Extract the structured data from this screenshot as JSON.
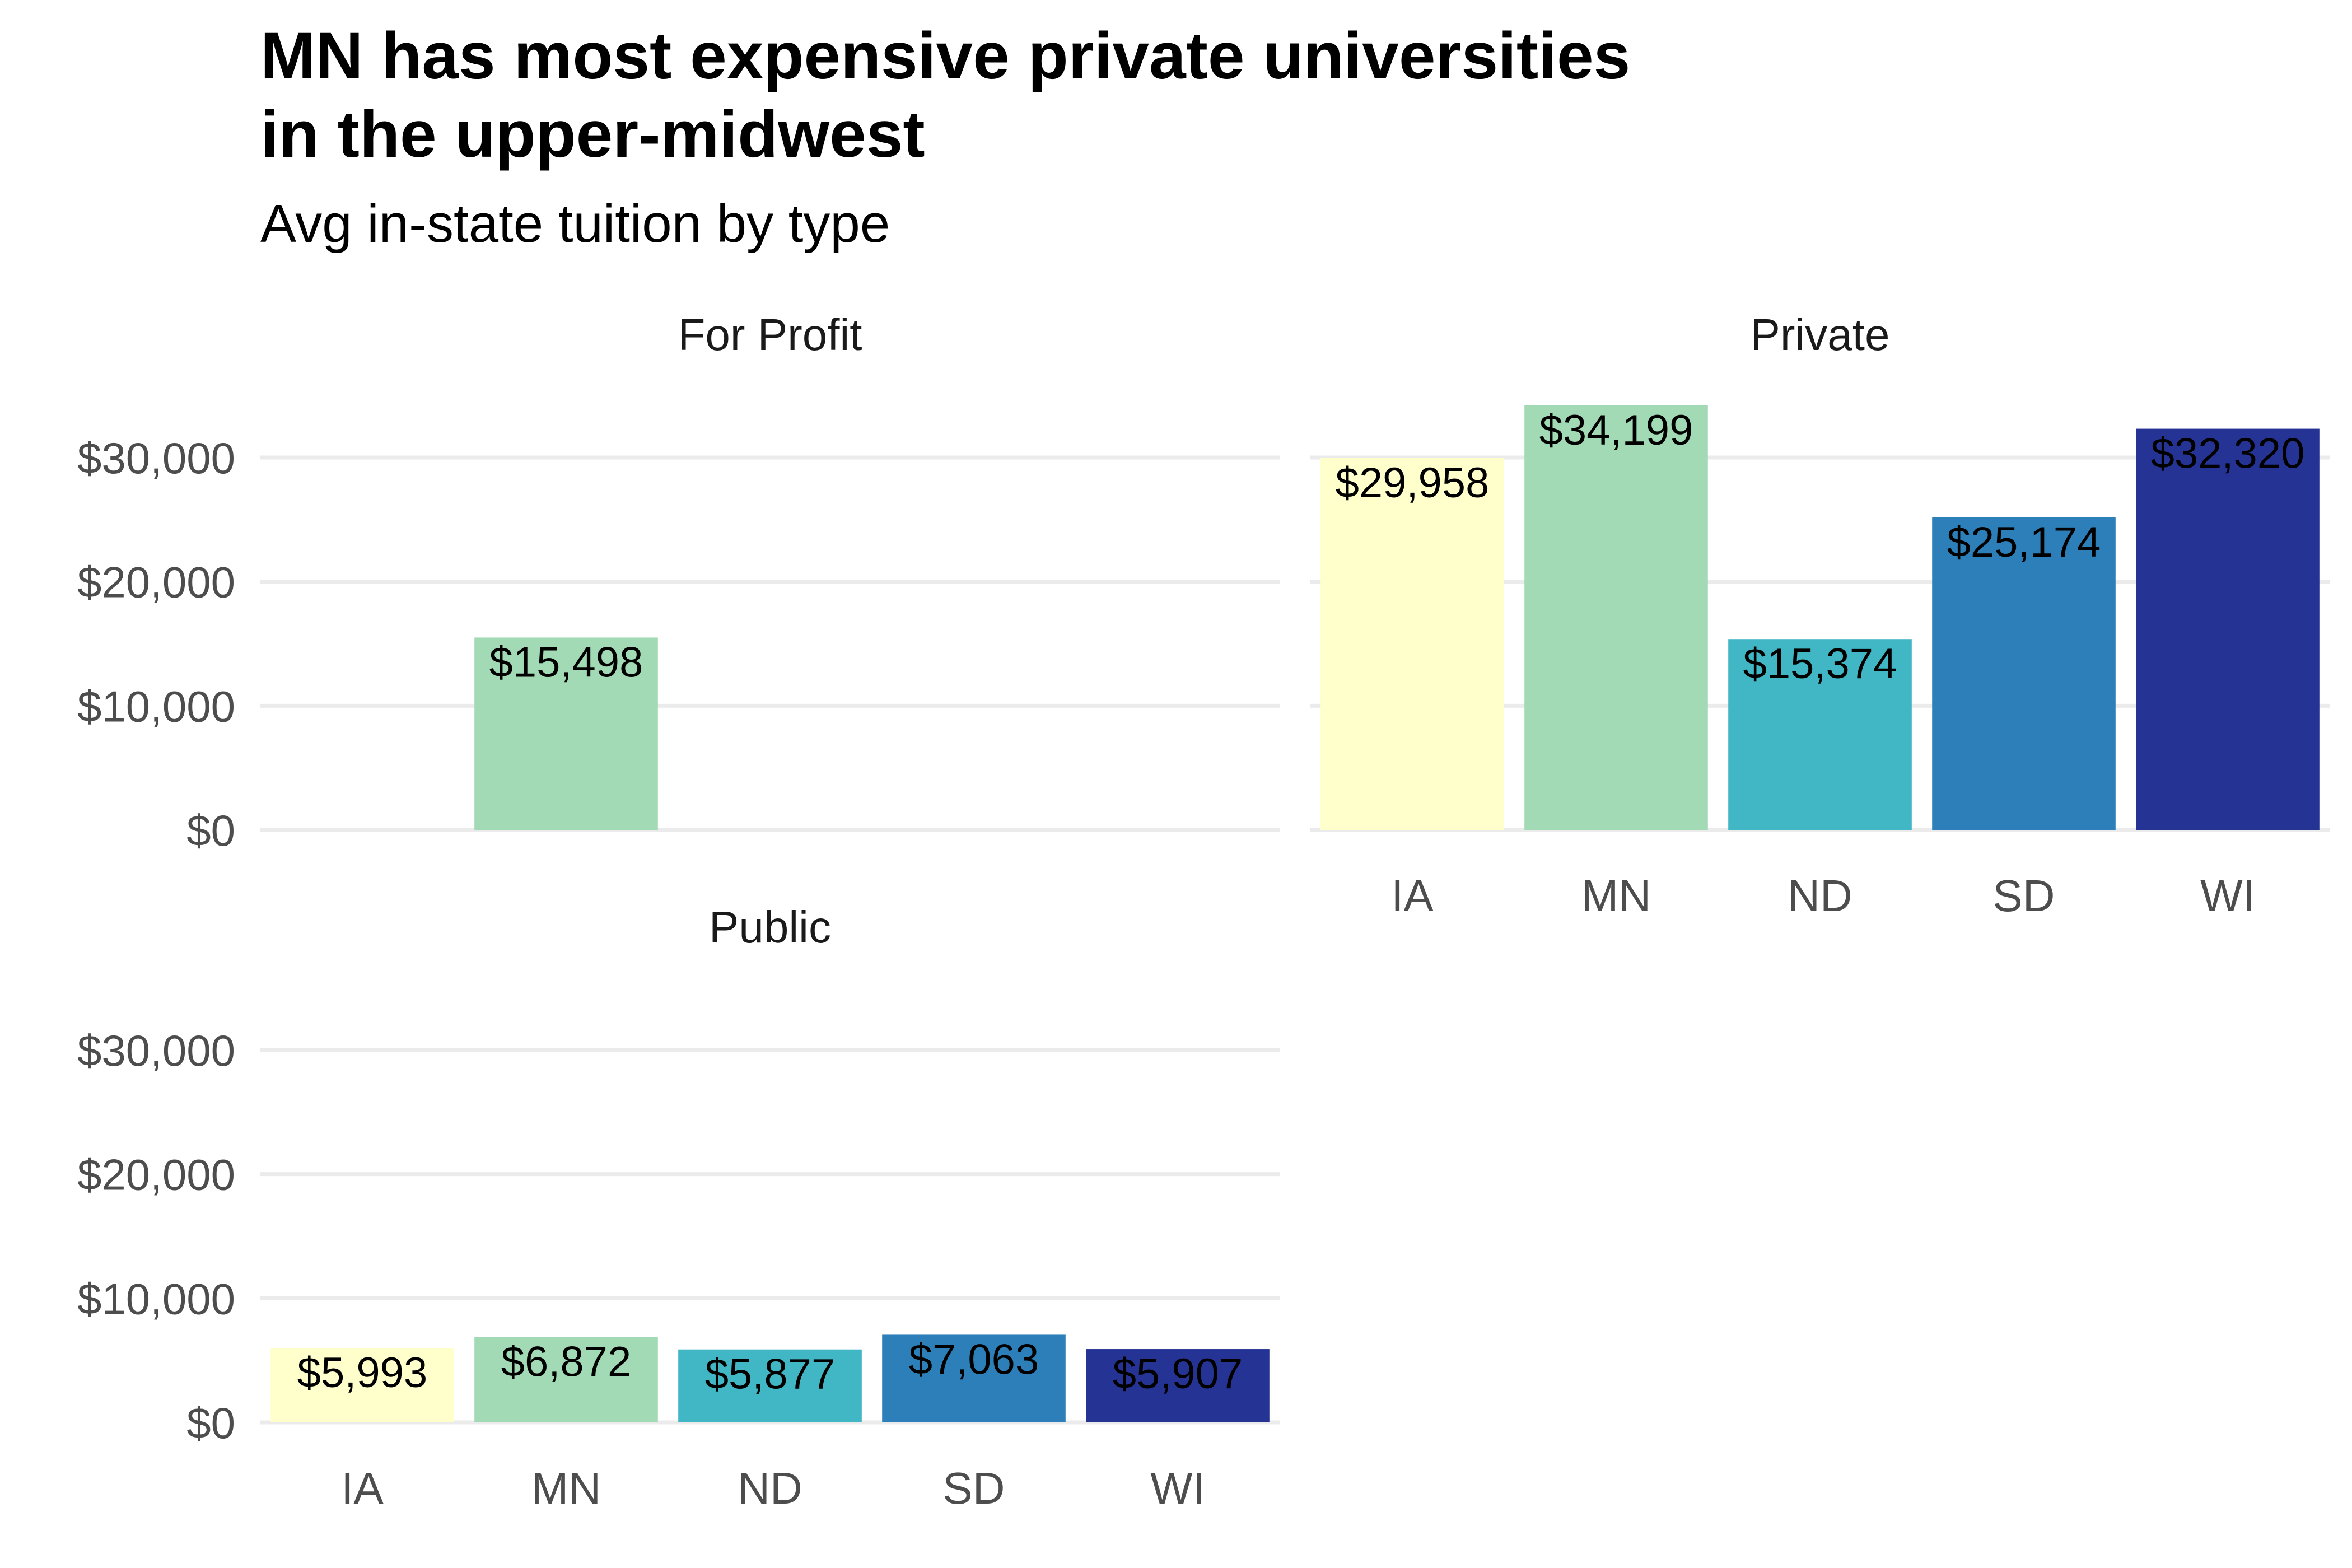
{
  "chart_data": {
    "type": "bar",
    "title_line1": "MN has most expensive private universities",
    "title_line2": "in the upper-midwest",
    "subtitle": "Avg in-state tuition by type",
    "xlabel": "",
    "ylabel": "",
    "ylim": [
      0,
      34199
    ],
    "y_ticks": [
      "$0",
      "$10,000",
      "$20,000",
      "$30,000"
    ],
    "y_tick_values": [
      0,
      10000,
      20000,
      30000
    ],
    "categories": [
      "IA",
      "MN",
      "ND",
      "SD",
      "WI"
    ],
    "colors": {
      "IA": "#FFFFCC",
      "MN": "#A1DAB4",
      "ND": "#41B6C4",
      "SD": "#2C7FB8",
      "WI": "#253494"
    },
    "grid": "horizontal",
    "legend": "none",
    "facets": [
      {
        "name": "For Profit",
        "values": [
          null,
          15498,
          null,
          null,
          null
        ],
        "labels": [
          "",
          "$15,498",
          "",
          "",
          ""
        ]
      },
      {
        "name": "Private",
        "values": [
          29958,
          34199,
          15374,
          25174,
          32320
        ],
        "labels": [
          "$29,958",
          "$34,199",
          "$15,374",
          "$25,174",
          "$32,320"
        ]
      },
      {
        "name": "Public",
        "values": [
          5993,
          6872,
          5877,
          7063,
          5907
        ],
        "labels": [
          "$5,993",
          "$6,872",
          "$5,877",
          "$7,063",
          "$5,907"
        ]
      }
    ]
  }
}
